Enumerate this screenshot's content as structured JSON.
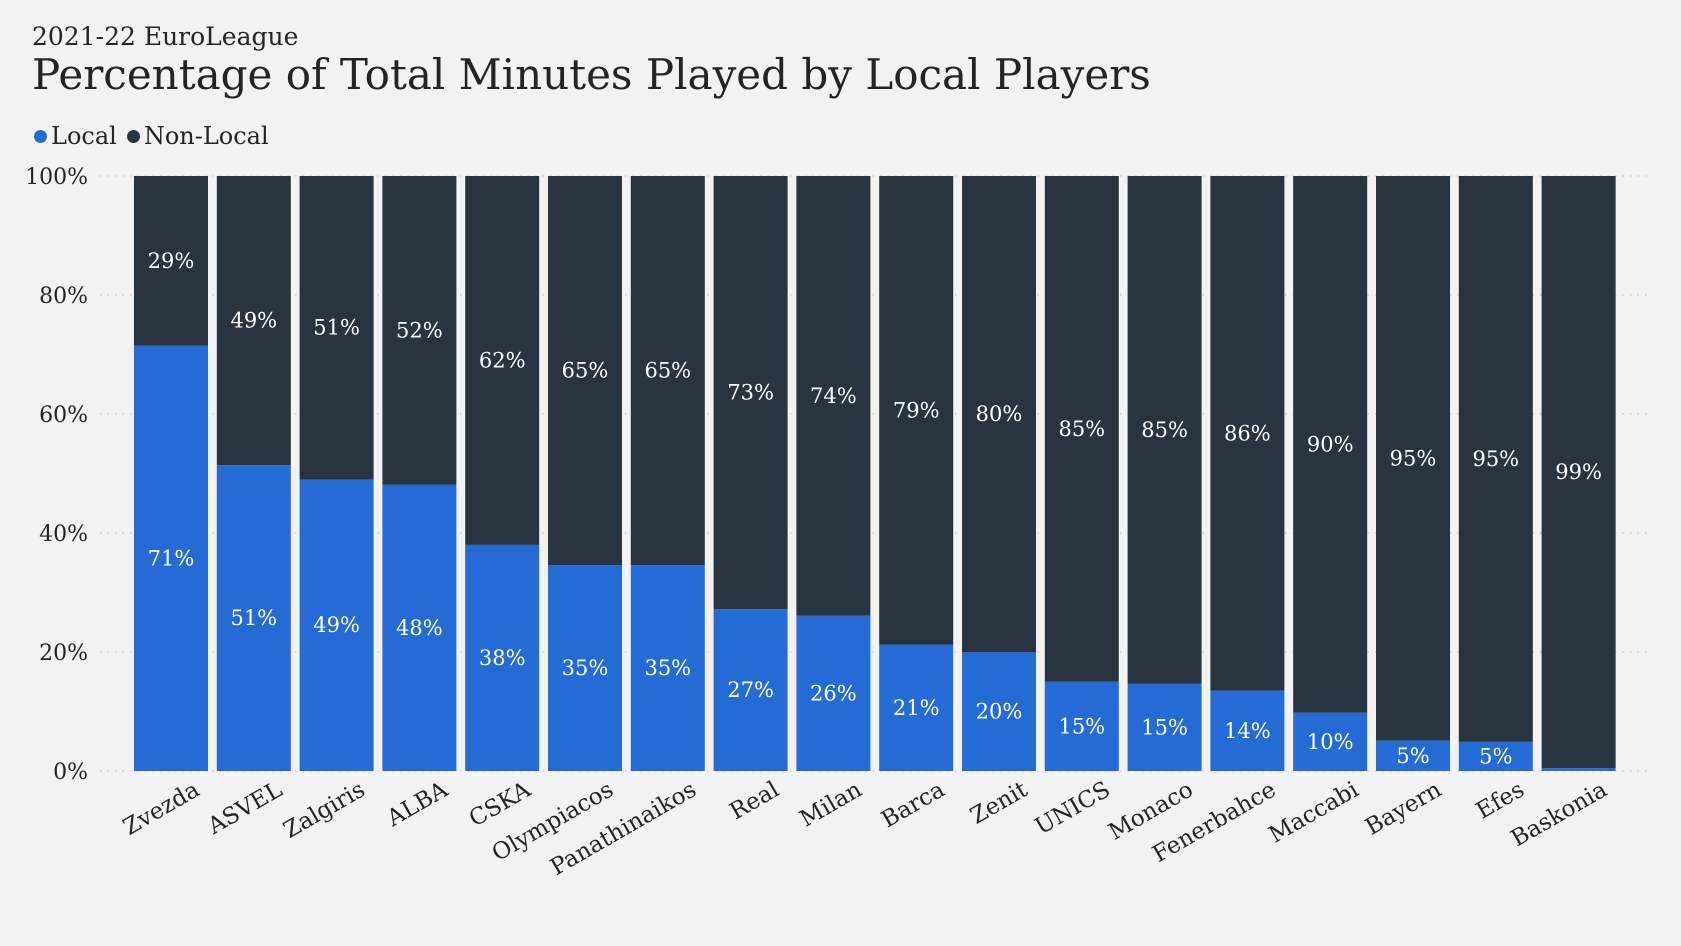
{
  "chart_data": {
    "type": "bar",
    "stacked": true,
    "subtitle": "2021-22 EuroLeague",
    "title": "Percentage of Total Minutes Played by Local Players",
    "categories": [
      "Zvezda",
      "ASVEL",
      "Zalgiris",
      "ALBA",
      "CSKA",
      "Olympiacos",
      "Panathinaikos",
      "Real",
      "Milan",
      "Barca",
      "Zenit",
      "UNICS",
      "Monaco",
      "Fenerbahce",
      "Maccabi",
      "Bayern",
      "Efes",
      "Baskonia"
    ],
    "series": [
      {
        "name": "Local",
        "color": "#256bd6",
        "values": [
          71.5,
          51.4,
          49.0,
          48.1,
          38.0,
          34.6,
          34.6,
          27.2,
          26.1,
          21.2,
          20.0,
          15.0,
          14.7,
          13.5,
          9.8,
          5.1,
          4.9,
          0.5
        ],
        "labels": [
          "71%",
          "51%",
          "49%",
          "48%",
          "38%",
          "35%",
          "35%",
          "27%",
          "26%",
          "21%",
          "20%",
          "15%",
          "15%",
          "14%",
          "10%",
          "5%",
          "5%",
          ""
        ]
      },
      {
        "name": "Non-Local",
        "color": "#283440",
        "values": [
          28.5,
          48.6,
          51.0,
          51.9,
          62.0,
          65.4,
          65.4,
          72.8,
          73.9,
          78.8,
          80.0,
          85.0,
          85.3,
          86.5,
          90.2,
          94.9,
          95.1,
          99.5
        ],
        "labels": [
          "29%",
          "49%",
          "51%",
          "52%",
          "62%",
          "65%",
          "65%",
          "73%",
          "74%",
          "79%",
          "80%",
          "85%",
          "85%",
          "86%",
          "90%",
          "95%",
          "95%",
          "99%"
        ]
      }
    ],
    "ylim": [
      0,
      100
    ],
    "yticks": [
      "0%",
      "20%",
      "40%",
      "60%",
      "80%",
      "100%"
    ],
    "ytick_values": [
      0,
      20,
      40,
      60,
      80,
      100
    ],
    "grid": true,
    "legend_position": "top-left",
    "xlabel": "",
    "ylabel": ""
  }
}
